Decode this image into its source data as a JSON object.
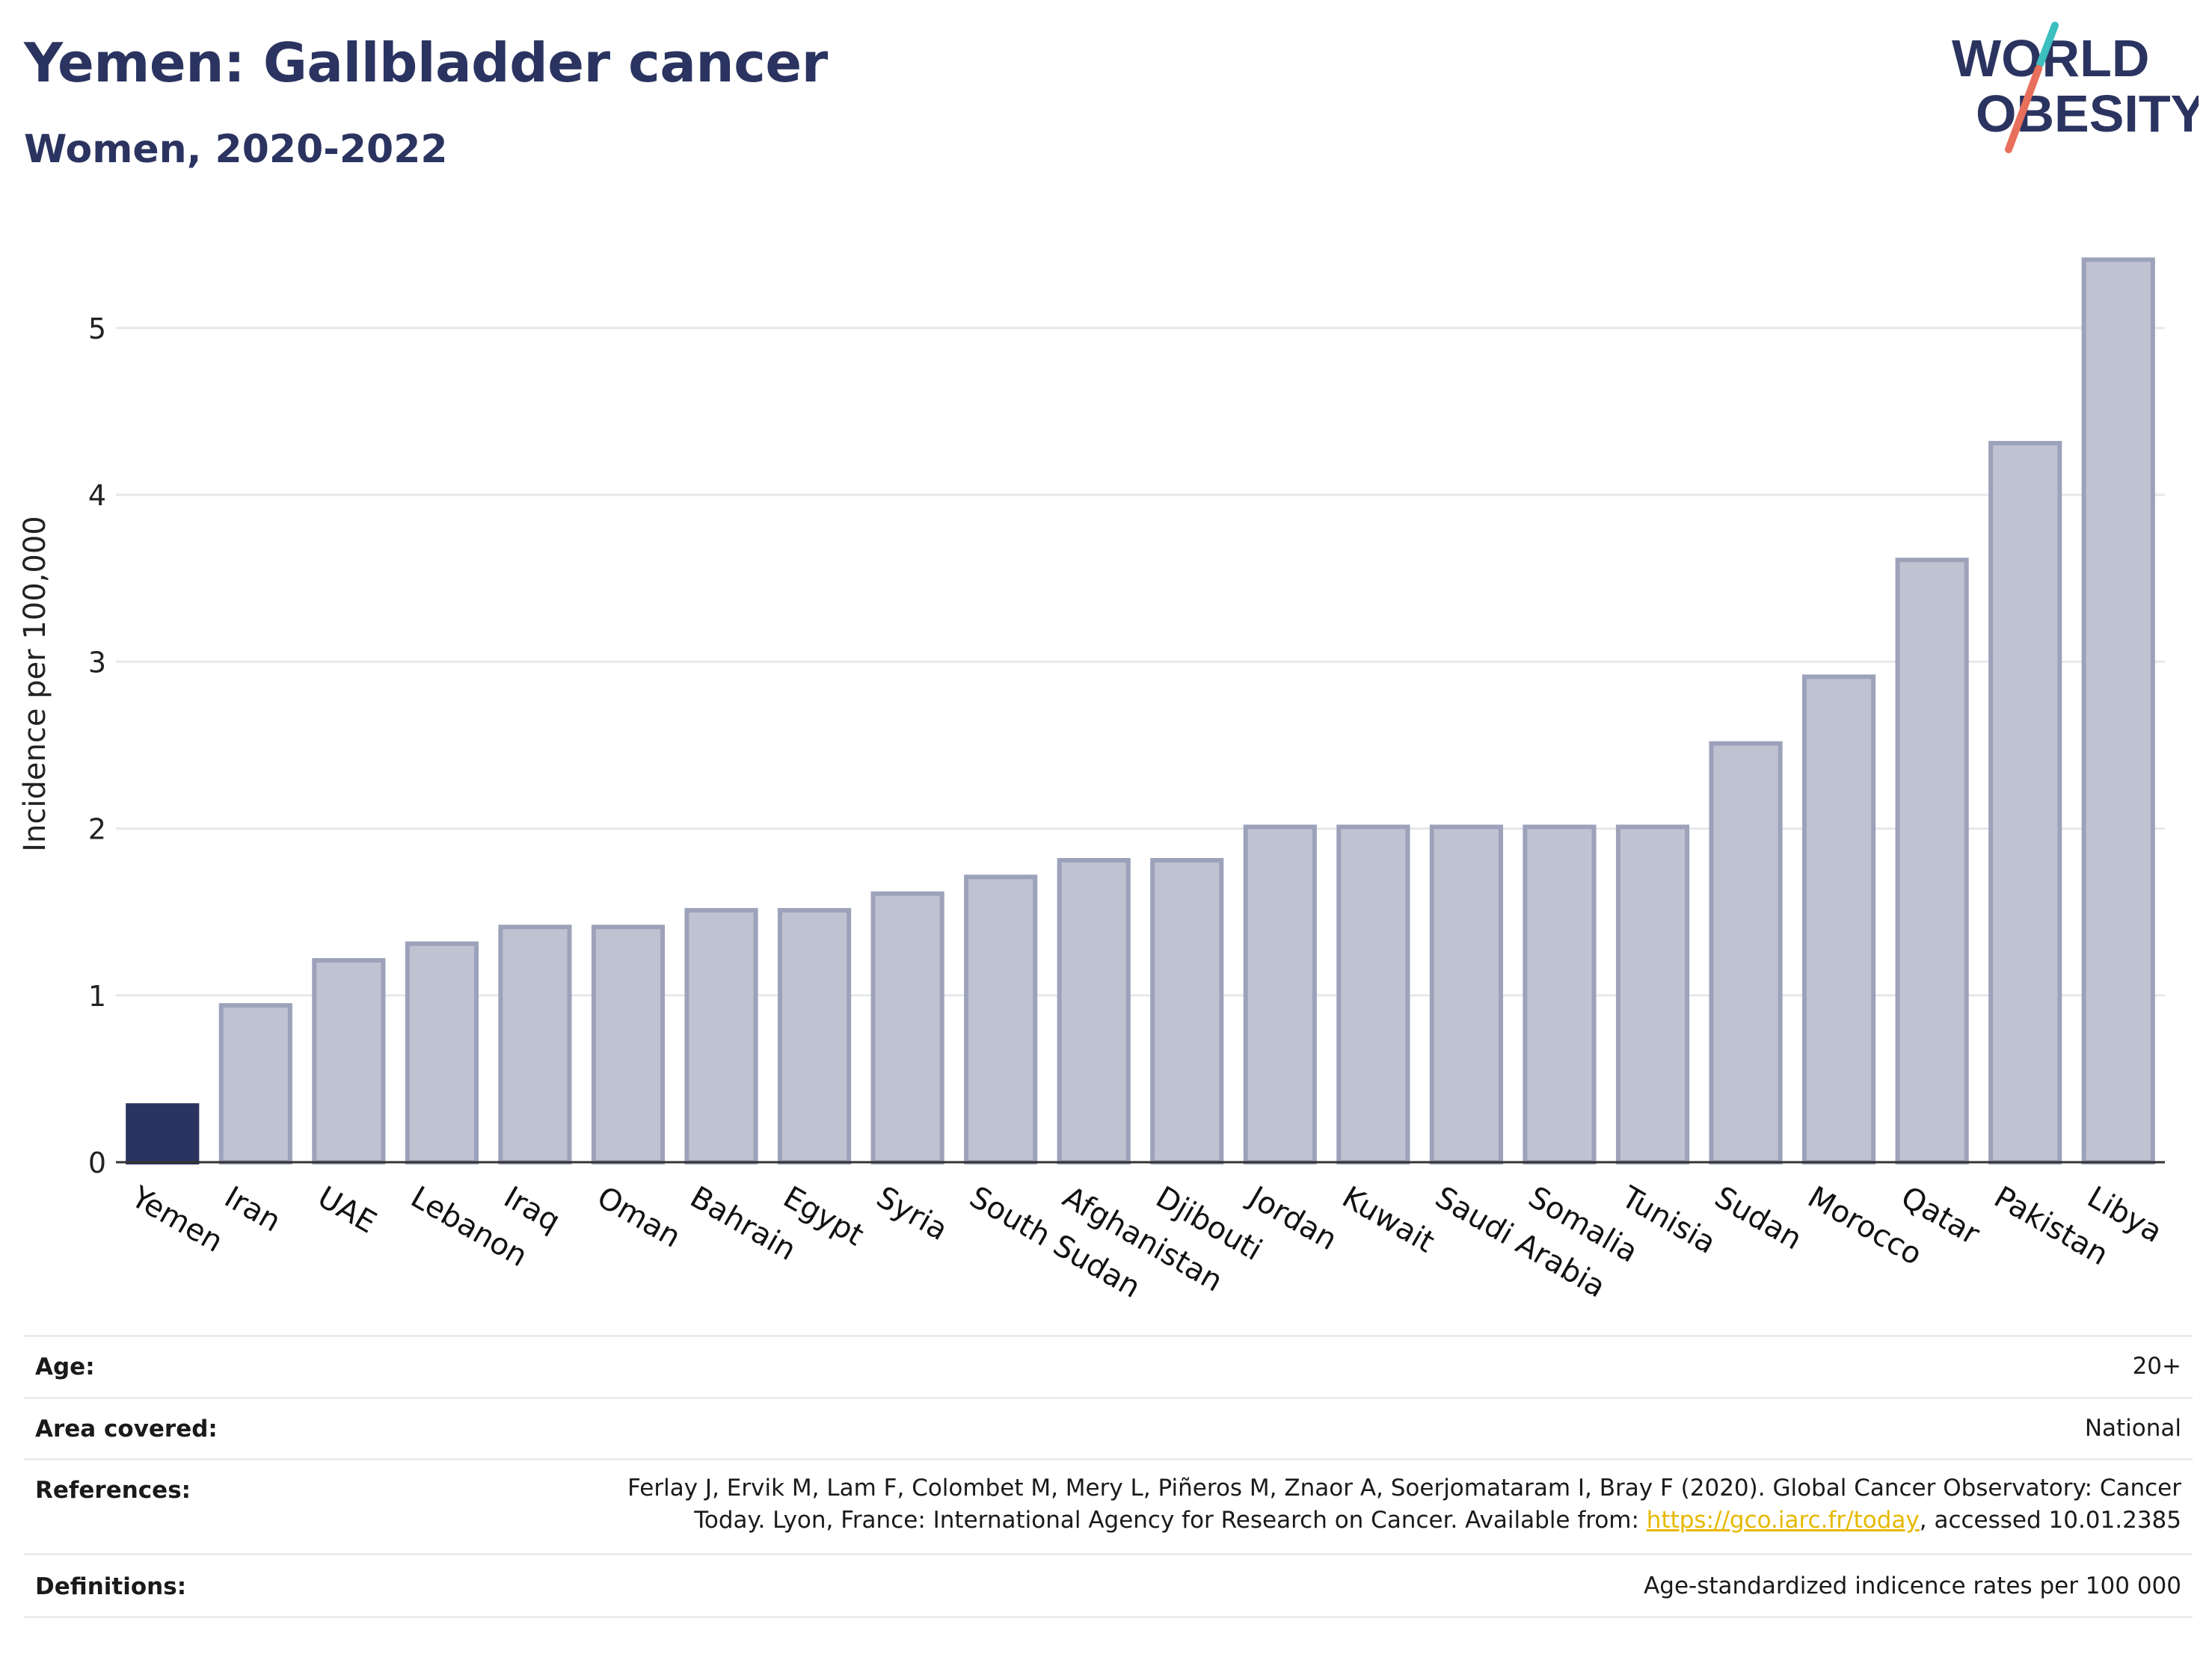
{
  "header": {
    "title": "Yemen: Gallbladder cancer",
    "subtitle": "Women, 2020-2022",
    "logo_line1": "WORLD",
    "logo_line2": "OBESITY"
  },
  "colors": {
    "highlight": "#2b3460",
    "bar_fill": "#bfc2d1",
    "bar_stroke": "#9da2bb",
    "title": "#2b3460",
    "logo_teal": "#3bbfbf",
    "logo_coral": "#e86f5c",
    "link": "#e6b800"
  },
  "chart_data": {
    "type": "bar",
    "title": "Yemen: Gallbladder cancer",
    "subtitle": "Women, 2020-2022",
    "xlabel": "",
    "ylabel": "Incidence per 100,000",
    "ylim": [
      0,
      5.6
    ],
    "yticks": [
      0,
      1,
      2,
      3,
      4,
      5
    ],
    "grid": true,
    "highlight": "Yemen",
    "categories": [
      "Yemen",
      "Iran",
      "UAE",
      "Lebanon",
      "Iraq",
      "Oman",
      "Bahrain",
      "Egypt",
      "Syria",
      "South Sudan",
      "Afghanistan",
      "Djibouti",
      "Jordan",
      "Kuwait",
      "Saudi Arabia",
      "Somalia",
      "Tunisia",
      "Sudan",
      "Morocco",
      "Qatar",
      "Pakistan",
      "Libya"
    ],
    "values": [
      0.34,
      0.94,
      1.21,
      1.31,
      1.41,
      1.41,
      1.51,
      1.51,
      1.61,
      1.71,
      1.81,
      1.81,
      2.01,
      2.01,
      2.01,
      2.01,
      2.01,
      2.51,
      2.91,
      3.61,
      4.31,
      5.41
    ]
  },
  "info": {
    "age_label": "Age:",
    "age_value": "20+",
    "area_label": "Area covered:",
    "area_value": "National",
    "references_label": "References:",
    "references_line1": "Ferlay J, Ervik M, Lam F, Colombet M, Mery L, Piñeros M, Znaor A, Soerjomataram I, Bray F (2020). Global Cancer Observatory: Cancer",
    "references_line2_pre": "Today. Lyon, France: International Agency for Research on Cancer. Available from: ",
    "references_link": "https://gco.iarc.fr/today",
    "references_line2_post": ", accessed 10.01.2385",
    "definitions_label": "Definitions:",
    "definitions_value": "Age-standardized indicence rates per 100 000"
  }
}
